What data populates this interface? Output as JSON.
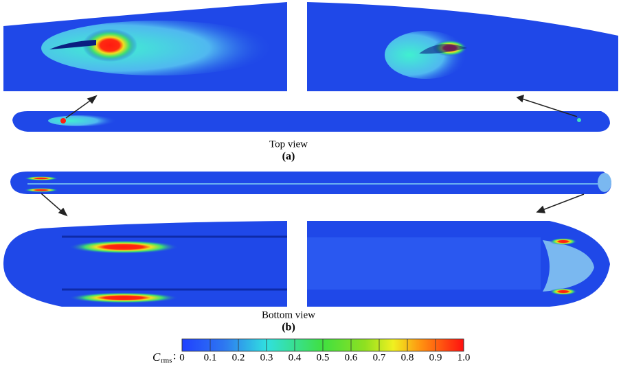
{
  "views": {
    "top_label": "Top view",
    "top_tag": "(a)",
    "bottom_label": "Bottom view",
    "bottom_tag": "(b)"
  },
  "colorbar": {
    "symbol": "C",
    "subscript": "rms",
    "separator": ":",
    "range": [
      0,
      1.0
    ],
    "ticks": [
      0,
      0.1,
      0.2,
      0.3,
      0.4,
      0.5,
      0.6,
      0.7,
      0.8,
      0.9,
      {
        "value": 1.0,
        "label": "1.0"
      }
    ]
  }
}
